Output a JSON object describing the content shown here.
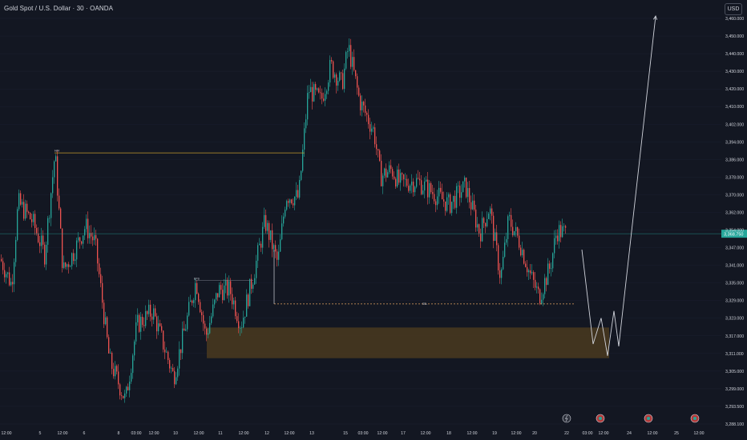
{
  "header": {
    "title": "Gold Spot / U.S. Dollar · 30 · OANDA",
    "currency_button": "USD"
  },
  "colors": {
    "background": "#131722",
    "up_candle": "#26a69a",
    "down_candle": "#ef5350",
    "price_line": "#26a69a",
    "zone_fill": "#4a3a1e",
    "resistance_line": "#c39a2b",
    "projection_line": "#d1d4dc",
    "axis_text": "#d1d4dc"
  },
  "icons": [
    "flash-icon",
    "event-flag-icon",
    "event-flag-icon",
    "event-flag-icon"
  ],
  "chart_data": {
    "type": "candlestick",
    "title": "Gold Spot / U.S. Dollar · 30 · OANDA",
    "y_axis": {
      "range": [
        3285,
        3466
      ],
      "ticks": [
        "3,460.000",
        "3,450.000",
        "3,440.000",
        "3,430.000",
        "3,420.000",
        "3,410.000",
        "3,402.000",
        "3,394.000",
        "3,386.000",
        "3,378.000",
        "3,370.000",
        "3,362.000",
        "3,354.000",
        "3,347.000",
        "3,341.000",
        "3,335.000",
        "3,329.000",
        "3,323.000",
        "3,317.000",
        "3,311.000",
        "3,305.000",
        "3,299.000",
        "3,293.500",
        "3,288.100"
      ],
      "current_price_label": "3,368.750",
      "current_price": 3368.75
    },
    "x_axis": {
      "ticks": [
        "12:00",
        "5",
        "12:00",
        "6",
        "8",
        "03:00",
        "12:00",
        "10",
        "12:00",
        "11",
        "12:00",
        "12",
        "12:00",
        "13",
        "15",
        "03:00",
        "12:00",
        "17",
        "12:00",
        "18",
        "12:00",
        "19",
        "12:00",
        "20",
        "22",
        "03:00",
        "12:00",
        "24",
        "12:00",
        "25",
        "12:00"
      ]
    },
    "price_anchors": [
      [
        0,
        3358
      ],
      [
        14,
        3347
      ],
      [
        22,
        3382
      ],
      [
        40,
        3374
      ],
      [
        55,
        3360
      ],
      [
        68,
        3403
      ],
      [
        78,
        3353
      ],
      [
        90,
        3360
      ],
      [
        106,
        3372
      ],
      [
        118,
        3365
      ],
      [
        136,
        3315
      ],
      [
        156,
        3298
      ],
      [
        170,
        3330
      ],
      [
        190,
        3336
      ],
      [
        216,
        3308
      ],
      [
        244,
        3349
      ],
      [
        256,
        3325
      ],
      [
        272,
        3345
      ],
      [
        286,
        3345
      ],
      [
        300,
        3330
      ],
      [
        316,
        3352
      ],
      [
        330,
        3374
      ],
      [
        346,
        3356
      ],
      [
        356,
        3385
      ],
      [
        372,
        3384
      ],
      [
        384,
        3430
      ],
      [
        400,
        3425
      ],
      [
        412,
        3440
      ],
      [
        426,
        3432
      ],
      [
        434,
        3448
      ],
      [
        448,
        3425
      ],
      [
        466,
        3412
      ],
      [
        474,
        3393
      ],
      [
        488,
        3396
      ],
      [
        498,
        3390
      ],
      [
        520,
        3391
      ],
      [
        532,
        3388
      ],
      [
        560,
        3381
      ],
      [
        580,
        3389
      ],
      [
        598,
        3369
      ],
      [
        610,
        3380
      ],
      [
        624,
        3350
      ],
      [
        634,
        3375
      ],
      [
        648,
        3365
      ],
      [
        660,
        3352
      ],
      [
        672,
        3342
      ],
      [
        686,
        3355
      ],
      [
        694,
        3370
      ],
      [
        706,
        3369
      ]
    ],
    "annotations": {
      "resistance_line": {
        "start_x": 68,
        "end_x": 380,
        "price": 3403,
        "label": "H/H"
      },
      "minor_line": {
        "start_x": 244,
        "end_x": 316,
        "price": 3349,
        "label": "EFS"
      },
      "dashed_line": {
        "start_x": 342,
        "end_x": 718,
        "price": 3339,
        "label": "SSL"
      },
      "demand_zone": {
        "start_x": 258,
        "end_x": 760,
        "top": 3329,
        "bottom": 3316
      },
      "projection": [
        [
          726,
          3362
        ],
        [
          740,
          3322
        ],
        [
          750,
          3333
        ],
        [
          758,
          3317
        ],
        [
          766,
          3336
        ],
        [
          772,
          3321
        ],
        [
          818,
          3461
        ]
      ]
    }
  }
}
